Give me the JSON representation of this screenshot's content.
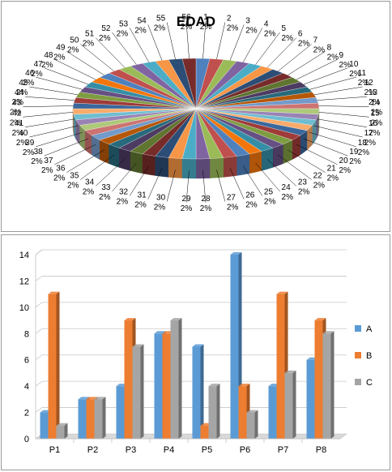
{
  "chart_data": [
    {
      "type": "pie",
      "title": "EDAD",
      "labels": [
        "1",
        "2",
        "3",
        "4",
        "5",
        "6",
        "7",
        "8",
        "9",
        "10",
        "11",
        "12",
        "13",
        "14",
        "15",
        "16",
        "17",
        "18",
        "19",
        "20",
        "21",
        "22",
        "23",
        "24",
        "25",
        "26",
        "27",
        "28",
        "29",
        "30",
        "31",
        "32",
        "33",
        "34",
        "35",
        "36",
        "37",
        "38",
        "39",
        "40",
        "41",
        "42",
        "43",
        "44",
        "45",
        "46",
        "47",
        "48",
        "49",
        "50",
        "51",
        "52",
        "53",
        "54",
        "55",
        "56"
      ],
      "values": [
        1,
        1,
        1,
        1,
        1,
        1,
        1,
        1,
        1,
        1,
        1,
        1,
        1,
        1,
        1,
        1,
        1,
        1,
        1,
        1,
        1,
        1,
        1,
        1,
        1,
        1,
        1,
        1,
        1,
        1,
        1,
        1,
        1,
        1,
        1,
        1,
        1,
        1,
        1,
        1,
        1,
        1,
        1,
        1,
        1,
        1,
        1,
        1,
        1,
        1,
        1,
        1,
        1,
        1,
        1,
        1
      ],
      "data_label": "2%",
      "style": "3d",
      "palette": [
        "#4f81bd",
        "#c0504d",
        "#9bbb59",
        "#8064a2",
        "#4bacc6",
        "#f79646",
        "#2c4d75",
        "#772c2a",
        "#5f7530",
        "#4d3b62",
        "#276a7c",
        "#b65708",
        "#729aca",
        "#cd7371",
        "#afc97a",
        "#9983b5",
        "#6fbdd1",
        "#f9ab6b",
        "#3a679c",
        "#9f3b38",
        "#7e9c40",
        "#664f83",
        "#358ea6",
        "#f3760c"
      ]
    },
    {
      "type": "bar",
      "categories": [
        "P1",
        "P2",
        "P3",
        "P4",
        "P5",
        "P6",
        "P7",
        "P8"
      ],
      "series": [
        {
          "name": "A",
          "values": [
            2,
            3,
            4,
            8,
            7,
            14,
            4,
            6
          ],
          "color": "#5b9bd5"
        },
        {
          "name": "B",
          "values": [
            11,
            3,
            9,
            8,
            1,
            4,
            11,
            9
          ],
          "color": "#ed7d31"
        },
        {
          "name": "C",
          "values": [
            1,
            3,
            7,
            9,
            4,
            2,
            5,
            8
          ],
          "color": "#a5a5a5"
        }
      ],
      "ylim": [
        0,
        14
      ],
      "yticks": [
        0,
        2,
        4,
        6,
        8,
        10,
        12,
        14
      ],
      "grid": true,
      "legend": "right",
      "style": "3d"
    }
  ]
}
